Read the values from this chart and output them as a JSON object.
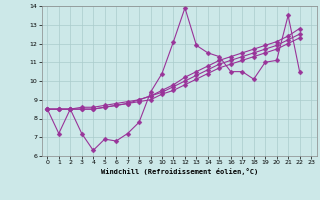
{
  "title": "",
  "xlabel": "Windchill (Refroidissement éolien,°C)",
  "xlim": [
    -0.5,
    23.5
  ],
  "ylim": [
    6,
    14
  ],
  "xticks": [
    0,
    1,
    2,
    3,
    4,
    5,
    6,
    7,
    8,
    9,
    10,
    11,
    12,
    13,
    14,
    15,
    16,
    17,
    18,
    19,
    20,
    21,
    22,
    23
  ],
  "yticks": [
    6,
    7,
    8,
    9,
    10,
    11,
    12,
    13,
    14
  ],
  "background_color": "#cce8e8",
  "grid_color": "#aacccc",
  "line_color": "#993399",
  "lines": [
    [
      8.5,
      7.2,
      8.5,
      7.2,
      6.3,
      6.9,
      6.8,
      7.2,
      7.8,
      9.4,
      10.4,
      12.1,
      13.9,
      11.9,
      11.5,
      11.3,
      10.5,
      10.5,
      10.1,
      11.0,
      11.1,
      13.5,
      10.5
    ],
    [
      8.5,
      8.5,
      8.5,
      8.5,
      8.5,
      8.6,
      8.7,
      8.8,
      9.0,
      9.2,
      9.5,
      9.8,
      10.2,
      10.5,
      10.8,
      11.1,
      11.3,
      11.5,
      11.7,
      11.9,
      12.1,
      12.4,
      12.8
    ],
    [
      8.5,
      8.5,
      8.5,
      8.6,
      8.6,
      8.7,
      8.8,
      8.9,
      9.0,
      9.2,
      9.4,
      9.7,
      10.0,
      10.3,
      10.6,
      10.9,
      11.1,
      11.3,
      11.5,
      11.7,
      11.9,
      12.2,
      12.5
    ],
    [
      8.5,
      8.5,
      8.5,
      8.5,
      8.5,
      8.6,
      8.7,
      8.8,
      8.9,
      9.0,
      9.3,
      9.5,
      9.8,
      10.1,
      10.4,
      10.7,
      10.9,
      11.1,
      11.3,
      11.5,
      11.7,
      12.0,
      12.3
    ]
  ],
  "markersize": 2.5,
  "linewidth": 0.8
}
